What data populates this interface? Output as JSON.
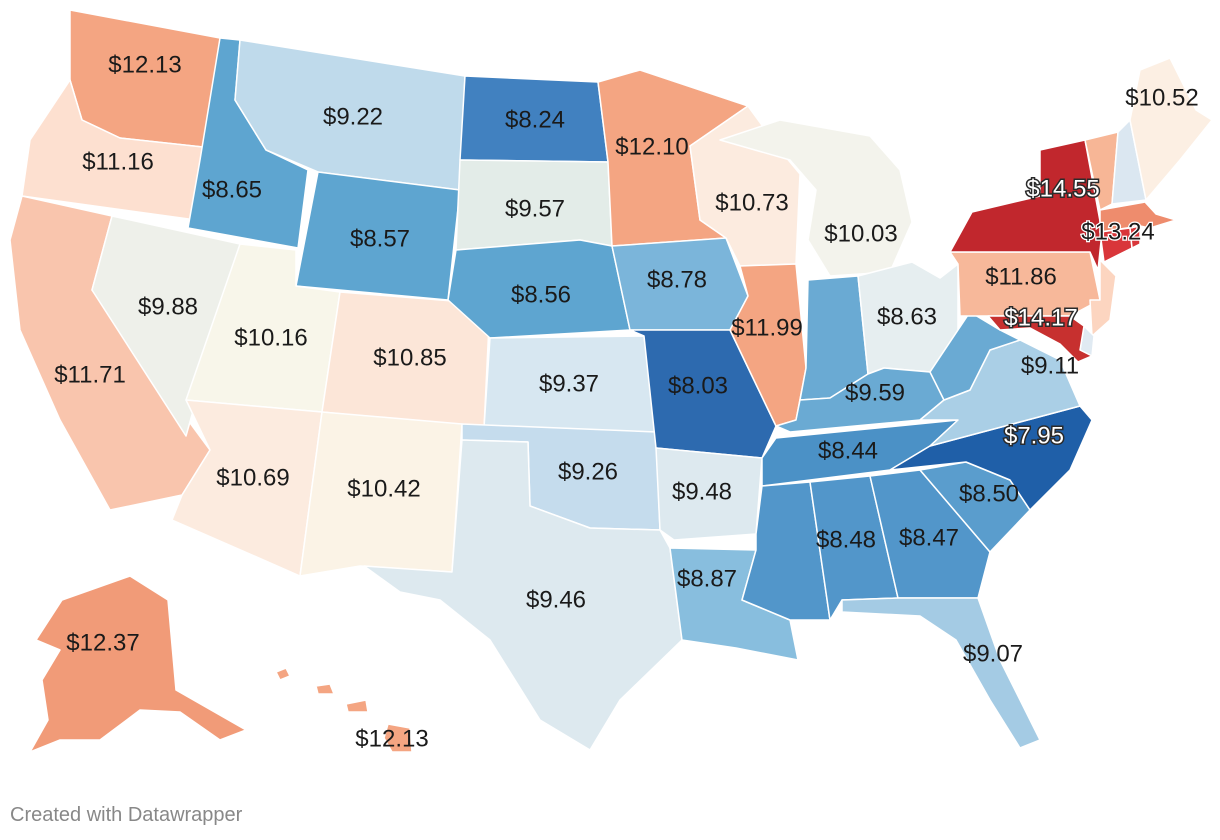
{
  "map_data": {
    "type": "choropleth",
    "regions": [
      {
        "state": "Washington",
        "value": "$12.13",
        "color": "#f4a582"
      },
      {
        "state": "Oregon",
        "value": "$11.16",
        "color": "#fde0d0"
      },
      {
        "state": "California",
        "value": "$11.71",
        "color": "#f9c5ad"
      },
      {
        "state": "Idaho",
        "value": "$8.65",
        "color": "#5ea5d0"
      },
      {
        "state": "Nevada",
        "value": "$9.88",
        "color": "#eef0ea"
      },
      {
        "state": "Montana",
        "value": "$9.22",
        "color": "#bfdaeb"
      },
      {
        "state": "Wyoming",
        "value": "$8.57",
        "color": "#5ea5d0"
      },
      {
        "state": "Utah",
        "value": "$10.16",
        "color": "#f8f6ea"
      },
      {
        "state": "Arizona",
        "value": "$10.69",
        "color": "#fcebdf"
      },
      {
        "state": "Colorado",
        "value": "$10.85",
        "color": "#fce6d8"
      },
      {
        "state": "New Mexico",
        "value": "$10.42",
        "color": "#fbf3e6"
      },
      {
        "state": "North Dakota",
        "value": "$8.24",
        "color": "#4181c0"
      },
      {
        "state": "South Dakota",
        "value": "$9.57",
        "color": "#e3ece8"
      },
      {
        "state": "Nebraska",
        "value": "$8.56",
        "color": "#5ea5d0"
      },
      {
        "state": "Kansas",
        "value": "$9.37",
        "color": "#d7e7f1"
      },
      {
        "state": "Oklahoma",
        "value": "$9.26",
        "color": "#c5dced"
      },
      {
        "state": "Texas",
        "value": "$9.46",
        "color": "#dde9ef"
      },
      {
        "state": "Minnesota",
        "value": "$12.10",
        "color": "#f4a582"
      },
      {
        "state": "Iowa",
        "value": "$8.78",
        "color": "#7bb5da"
      },
      {
        "state": "Missouri",
        "value": "$8.03",
        "color": "#2d6aaf"
      },
      {
        "state": "Arkansas",
        "value": "$9.48",
        "color": "#dde9ef"
      },
      {
        "state": "Louisiana",
        "value": "$8.87",
        "color": "#88bede"
      },
      {
        "state": "Wisconsin",
        "value": "$10.73",
        "color": "#fcebdf"
      },
      {
        "state": "Illinois",
        "value": "$11.99",
        "color": "#f4a582"
      },
      {
        "state": "Michigan",
        "value": "$10.03",
        "color": "#f3f3ec"
      },
      {
        "state": "Indiana",
        "value": "$8.63",
        "color": "#6aaad3"
      },
      {
        "state": "Ohio",
        "value": "$9.59",
        "color": "#e6eef0"
      },
      {
        "state": "Kentucky",
        "value": "$8.63",
        "color": "#6aaad3"
      },
      {
        "state": "Tennessee",
        "value": "$8.44",
        "color": "#4b91c6"
      },
      {
        "state": "Mississippi",
        "value": "$8.48",
        "color": "#5296ca"
      },
      {
        "state": "Alabama",
        "value": "$8.48",
        "color": "#5296ca"
      },
      {
        "state": "Georgia",
        "value": "$8.47",
        "color": "#5296ca"
      },
      {
        "state": "Florida",
        "value": "$9.07",
        "color": "#a4cbe4"
      },
      {
        "state": "South Carolina",
        "value": "$8.50",
        "color": "#5a9dcd"
      },
      {
        "state": "North Carolina",
        "value": "$7.95",
        "color": "#1f5fa8"
      },
      {
        "state": "Virginia",
        "value": "$9.11",
        "color": "#aacfe6"
      },
      {
        "state": "West Virginia",
        "value": "$8.63",
        "color": "#6aaad3"
      },
      {
        "state": "Pennsylvania",
        "value": "$11.86",
        "color": "#f7b89a"
      },
      {
        "state": "New York",
        "value": "$14.55",
        "color": "#c1272d"
      },
      {
        "state": "Maryland",
        "value": "$14.17",
        "color": "#c7302f"
      },
      {
        "state": "Massachusetts",
        "value": "$13.24",
        "color": "#ee8c6d"
      },
      {
        "state": "Maine",
        "value": "$10.52",
        "color": "#fcefe3"
      },
      {
        "state": "Alaska",
        "value": "$12.37",
        "color": "#f19b78"
      },
      {
        "state": "Hawaii",
        "value": "$12.13",
        "color": "#f4a582"
      }
    ],
    "unlabeled_states": [
      {
        "state": "New Hampshire",
        "color": "#dbe7f1"
      },
      {
        "state": "Vermont",
        "color": "#f7b696"
      },
      {
        "state": "New Jersey",
        "color": "#fcd5c0"
      },
      {
        "state": "Connecticut",
        "color": "#d9363a"
      },
      {
        "state": "Rhode Island",
        "color": "#d9363a"
      },
      {
        "state": "Delaware",
        "color": "#e0eaf2"
      }
    ]
  },
  "footer": {
    "credit": "Created with Datawrapper"
  }
}
